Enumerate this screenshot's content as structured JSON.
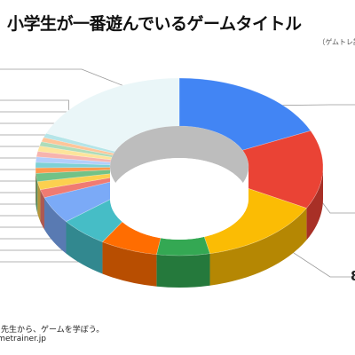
{
  "header": {
    "title": "小学生が一番遊んでいるゲームタイトル",
    "subtitle": "（ゲムトレ調"
  },
  "footer": {
    "tagline": "る先生から、ゲームを学ぼう。",
    "url": "gametrainer.jp"
  },
  "chart_data": {
    "type": "pie",
    "donut": true,
    "three_d": true,
    "title": "小学生が一番遊んでいるゲームタイトル",
    "slices": [
      {
        "value": 18.5,
        "color": "#4285f4"
      },
      {
        "value": 14.5,
        "color": "#ea4335"
      },
      {
        "value": 14.0,
        "color": "#fbbc04"
      },
      {
        "value": 6.0,
        "color": "#34a853"
      },
      {
        "value": 6.5,
        "color": "#ff6d01"
      },
      {
        "value": 5.5,
        "color": "#46bdc6"
      },
      {
        "value": 5.0,
        "color": "#7baaf7"
      },
      {
        "value": 1.5,
        "color": "#f07b72"
      },
      {
        "value": 1.5,
        "color": "#fcd04f"
      },
      {
        "value": 1.5,
        "color": "#71c287"
      },
      {
        "value": 1.0,
        "color": "#ff994d"
      },
      {
        "value": 1.0,
        "color": "#7ed1d7"
      },
      {
        "value": 1.0,
        "color": "#b3cefb"
      },
      {
        "value": 1.0,
        "color": "#f7b4ae"
      },
      {
        "value": 1.0,
        "color": "#fde49b"
      },
      {
        "value": 0.8,
        "color": "#aedcba"
      },
      {
        "value": 0.8,
        "color": "#ffc599"
      },
      {
        "value": 0.8,
        "color": "#b5e5e8"
      },
      {
        "value": 19.0,
        "color": "#eaf6f8"
      }
    ],
    "edge_labels": [
      "",
      "",
      "8",
      "",
      "",
      "",
      "",
      "",
      "",
      "",
      "",
      "",
      "",
      "",
      "",
      "",
      "",
      "",
      ""
    ]
  }
}
